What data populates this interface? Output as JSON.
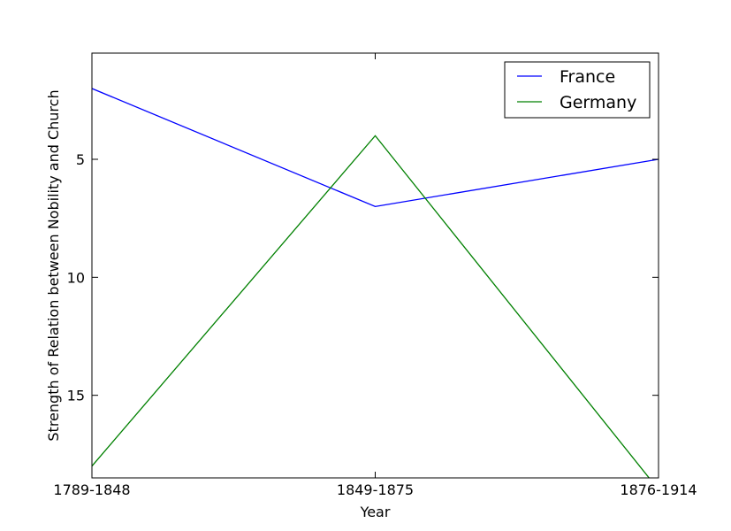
{
  "chart_data": {
    "type": "line",
    "title": "",
    "xlabel": "Year",
    "ylabel": "Strength of Relation between Nobility and Church",
    "categories": [
      "1789-1848",
      "1849-1875",
      "1876-1914"
    ],
    "y_inverted": true,
    "ylim": [
      18.5,
      0.5
    ],
    "yticks": [
      5,
      10,
      15
    ],
    "series": [
      {
        "name": "France",
        "color": "#0000ff",
        "values": [
          2,
          7,
          5
        ]
      },
      {
        "name": "Germany",
        "color": "#008000",
        "values": [
          18,
          4,
          19
        ]
      }
    ],
    "legend": "top-right",
    "grid": false
  }
}
